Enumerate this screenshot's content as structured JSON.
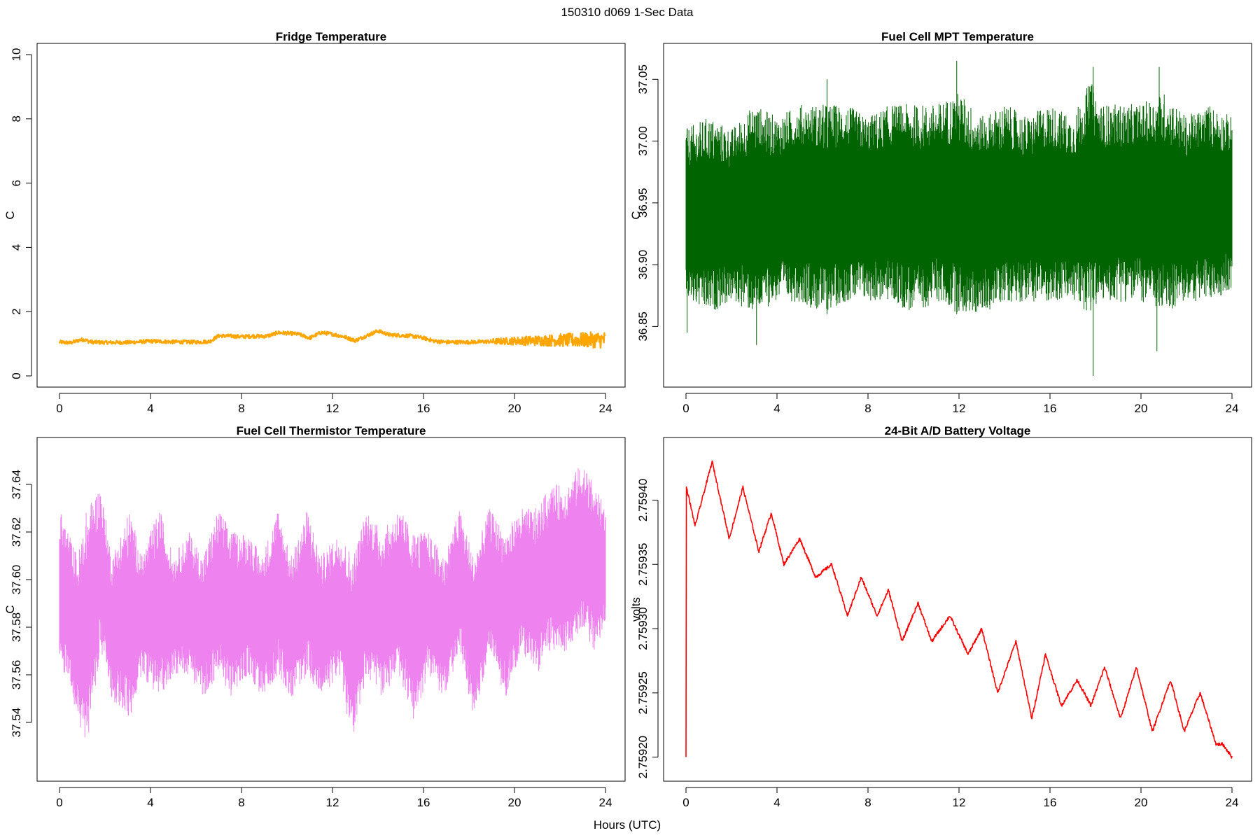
{
  "figure": {
    "title": "150310   d069   1-Sec Data",
    "xlabel": "Hours (UTC)"
  },
  "chart_data": [
    {
      "type": "line",
      "title": "Fridge Temperature",
      "ylabel": "C",
      "xlim": [
        0,
        24
      ],
      "ylim": [
        0,
        10
      ],
      "xticks": [
        0,
        4,
        8,
        12,
        16,
        20,
        24
      ],
      "xtick_labels": [
        "0",
        "4",
        "8",
        "12",
        "16",
        "20",
        "24"
      ],
      "yticks": [
        0,
        2,
        4,
        6,
        8,
        10
      ],
      "ytick_labels": [
        "0",
        "2",
        "4",
        "6",
        "8",
        "10"
      ],
      "color": "#FFA500",
      "x": [
        0,
        0.5,
        0.9,
        1.1,
        1.3,
        1.5,
        2,
        3,
        4,
        4.5,
        5,
        6,
        6.6,
        7,
        7.5,
        8,
        8.5,
        9,
        9.3,
        9.6,
        10,
        10.5,
        11,
        11.5,
        12,
        12.5,
        13,
        13.5,
        14,
        14.5,
        15,
        15.5,
        16,
        16.5,
        17,
        18,
        19,
        20,
        21,
        22,
        23,
        24
      ],
      "y": [
        1.05,
        1.03,
        1.12,
        1.13,
        1.07,
        1.05,
        1.04,
        1.04,
        1.08,
        1.07,
        1.06,
        1.05,
        1.07,
        1.25,
        1.24,
        1.22,
        1.24,
        1.23,
        1.27,
        1.35,
        1.33,
        1.3,
        1.18,
        1.35,
        1.3,
        1.22,
        1.1,
        1.25,
        1.4,
        1.28,
        1.26,
        1.24,
        1.18,
        1.08,
        1.05,
        1.05,
        1.07,
        1.09,
        1.1,
        1.11,
        1.12,
        1.12
      ]
    },
    {
      "type": "line",
      "title": "Fuel Cell MPT Temperature",
      "ylabel": "C",
      "xlim": [
        0,
        24
      ],
      "ylim": [
        36.81,
        37.07
      ],
      "xticks": [
        0,
        4,
        8,
        12,
        16,
        20,
        24
      ],
      "xtick_labels": [
        "0",
        "4",
        "8",
        "12",
        "16",
        "20",
        "24"
      ],
      "yticks": [
        36.85,
        36.9,
        36.95,
        37.0,
        37.05
      ],
      "ytick_labels": [
        "36.85",
        "36.90",
        "36.95",
        "37.00",
        "37.05"
      ],
      "color": "#006400",
      "x": [
        0,
        1,
        2,
        3,
        4,
        5,
        6,
        7,
        8,
        9,
        10,
        11,
        12,
        13,
        14,
        15,
        16,
        17,
        17.8,
        18.2,
        19,
        20,
        21,
        22,
        23,
        24
      ],
      "low": [
        36.87,
        36.86,
        36.87,
        36.86,
        36.87,
        36.87,
        36.86,
        36.87,
        36.87,
        36.87,
        36.86,
        36.87,
        36.86,
        36.86,
        36.87,
        36.87,
        36.87,
        36.87,
        36.86,
        36.87,
        36.87,
        36.87,
        36.86,
        36.87,
        36.87,
        36.88
      ],
      "high": [
        37.01,
        37.02,
        37.01,
        37.03,
        37.02,
        37.03,
        37.03,
        37.03,
        37.02,
        37.03,
        37.03,
        37.03,
        37.04,
        37.02,
        37.03,
        37.02,
        37.03,
        37.02,
        37.05,
        37.03,
        37.03,
        37.03,
        37.04,
        37.02,
        37.03,
        37.02
      ],
      "mean": 36.935,
      "spikes": [
        {
          "x": 0.05,
          "ymin": 36.845,
          "ymax": 37.01
        },
        {
          "x": 3.1,
          "ymin": 36.835,
          "ymax": 37.0
        },
        {
          "x": 6.2,
          "ymin": 36.86,
          "ymax": 37.05
        },
        {
          "x": 11.9,
          "ymin": 36.86,
          "ymax": 37.065
        },
        {
          "x": 17.9,
          "ymin": 36.81,
          "ymax": 37.06
        },
        {
          "x": 20.7,
          "ymin": 36.83,
          "ymax": 37.0
        },
        {
          "x": 20.8,
          "ymin": 36.88,
          "ymax": 37.06
        }
      ]
    },
    {
      "type": "line",
      "title": "Fuel Cell Thermistor Temperature",
      "ylabel": "C",
      "xlim": [
        0,
        24
      ],
      "ylim": [
        37.52,
        37.655
      ],
      "xticks": [
        0,
        4,
        8,
        12,
        16,
        20,
        24
      ],
      "xtick_labels": [
        "0",
        "4",
        "8",
        "12",
        "16",
        "20",
        "24"
      ],
      "yticks": [
        37.54,
        37.56,
        37.58,
        37.6,
        37.62,
        37.64
      ],
      "ytick_labels": [
        "37.54",
        "37.56",
        "37.58",
        "37.60",
        "37.62",
        "37.64"
      ],
      "color": "#EE82EE",
      "x": [
        0,
        0.4,
        0.8,
        1.2,
        1.8,
        2.3,
        3.1,
        3.6,
        4.4,
        5.0,
        5.7,
        6.3,
        7.0,
        7.6,
        8.3,
        8.9,
        9.6,
        10.2,
        10.9,
        11.5,
        12.3,
        12.9,
        13.5,
        14.2,
        14.9,
        15.6,
        16.2,
        16.9,
        17.6,
        18.2,
        18.9,
        19.6,
        20.3,
        21.0,
        21.6,
        22.3,
        23.0,
        23.5,
        24
      ],
      "low": [
        37.56,
        37.56,
        37.54,
        37.53,
        37.57,
        37.55,
        37.54,
        37.56,
        37.55,
        37.56,
        37.56,
        37.55,
        37.56,
        37.55,
        37.56,
        37.55,
        37.56,
        37.55,
        37.56,
        37.55,
        37.56,
        37.53,
        37.56,
        37.55,
        37.56,
        37.54,
        37.56,
        37.55,
        37.57,
        37.54,
        37.57,
        37.55,
        37.57,
        37.56,
        37.57,
        37.57,
        37.58,
        37.57,
        37.58
      ],
      "high": [
        37.63,
        37.62,
        37.61,
        37.63,
        37.64,
        37.61,
        37.63,
        37.61,
        37.63,
        37.61,
        37.62,
        37.61,
        37.63,
        37.62,
        37.62,
        37.61,
        37.63,
        37.61,
        37.63,
        37.61,
        37.62,
        37.61,
        37.63,
        37.62,
        37.63,
        37.62,
        37.62,
        37.61,
        37.63,
        37.61,
        37.63,
        37.62,
        37.63,
        37.63,
        37.64,
        37.64,
        37.65,
        37.64,
        37.63
      ]
    },
    {
      "type": "line",
      "title": "24-Bit A/D Battery Voltage",
      "ylabel": "volts",
      "xlim": [
        0,
        24
      ],
      "ylim": [
        2.75919,
        2.75944
      ],
      "xticks": [
        0,
        4,
        8,
        12,
        16,
        20,
        24
      ],
      "xtick_labels": [
        "0",
        "4",
        "8",
        "12",
        "16",
        "20",
        "24"
      ],
      "yticks": [
        2.7592,
        2.75925,
        2.7593,
        2.75935,
        2.7594
      ],
      "ytick_labels": [
        "2.75920",
        "2.75925",
        "2.75930",
        "2.75935",
        "2.75940"
      ],
      "color": "#FF0000",
      "x": [
        0,
        0.01,
        0.02,
        0.4,
        1.15,
        1.9,
        2.5,
        3.2,
        3.75,
        4.3,
        5.0,
        5.7,
        6.4,
        7.1,
        7.7,
        8.4,
        8.9,
        9.5,
        10.2,
        10.8,
        11.6,
        12.4,
        13.0,
        13.7,
        14.5,
        15.2,
        15.8,
        16.5,
        17.2,
        17.8,
        18.4,
        19.1,
        19.8,
        20.5,
        21.3,
        21.9,
        22.6,
        23.3,
        23.6,
        24
      ],
      "y": [
        2.7592,
        2.75941,
        2.75941,
        2.75938,
        2.75943,
        2.75937,
        2.75941,
        2.75936,
        2.75939,
        2.75935,
        2.75937,
        2.75934,
        2.75935,
        2.75931,
        2.75934,
        2.75931,
        2.75933,
        2.75929,
        2.75932,
        2.75929,
        2.75931,
        2.75928,
        2.7593,
        2.75925,
        2.75929,
        2.75923,
        2.75928,
        2.75924,
        2.75926,
        2.75924,
        2.75927,
        2.75923,
        2.75927,
        2.75922,
        2.75926,
        2.75922,
        2.75925,
        2.75921,
        2.75921,
        2.7592
      ]
    }
  ]
}
